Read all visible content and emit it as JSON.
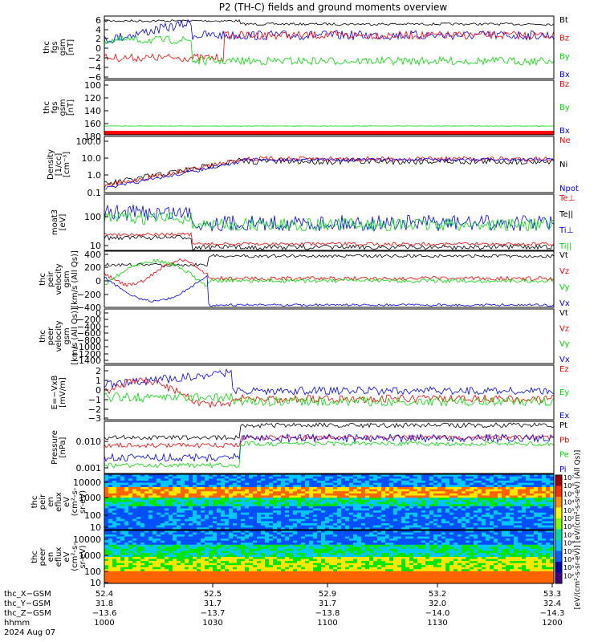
{
  "title": "P2 (TH-C) fields and ground moments overview",
  "colors": {
    "black": "#000000",
    "red": "#ff0000",
    "green": "#00dd00",
    "blue": "#0000ff"
  },
  "chart_data": [
    {
      "type": "line",
      "id": "fgs",
      "ylabel_lines": [
        "thc",
        "fgs",
        "gsm",
        "[nT]"
      ],
      "yticks": [
        "6",
        "4",
        "2",
        "0",
        "−2",
        "−4",
        "−6"
      ],
      "ylim": [
        -7,
        7
      ],
      "legend": [
        {
          "label": "Bt",
          "color": "black"
        },
        {
          "label": "Bz",
          "color": "red"
        },
        {
          "label": "By",
          "color": "green"
        },
        {
          "label": "Bx",
          "color": "blue"
        }
      ]
    },
    {
      "type": "line",
      "id": "fgs_mag",
      "ylabel_lines": [
        "thc",
        "fgs",
        "gsm",
        "[nT]"
      ],
      "yticks": [
        "100",
        "120",
        "140",
        "160",
        "180"
      ],
      "ylim": [
        90,
        190
      ],
      "legend": [
        {
          "label": "Bz",
          "color": "red"
        },
        {
          "label": "By",
          "color": "green"
        },
        {
          "label": "Bx",
          "color": "blue"
        }
      ]
    },
    {
      "type": "line",
      "id": "density",
      "ylabel_lines": [
        "Density",
        "[1/cc]",
        "[cm⁻³]"
      ],
      "yticks": [
        "100.0",
        "10.0",
        "1.0",
        "0.1"
      ],
      "scale": "log",
      "legend": [
        {
          "label": "Ne",
          "color": "red"
        },
        {
          "label": "Ni",
          "color": "black"
        },
        {
          "label": "Npot",
          "color": "blue"
        }
      ]
    },
    {
      "type": "line",
      "id": "temp",
      "ylabel_lines": [
        "moat3",
        "[eV]"
      ],
      "yticks": [
        "100",
        "10"
      ],
      "scale": "log",
      "legend": [
        {
          "label": "Te⊥",
          "color": "red"
        },
        {
          "label": "Te||",
          "color": "black"
        },
        {
          "label": "Ti⊥",
          "color": "blue"
        },
        {
          "label": "Ti||",
          "color": "green"
        }
      ]
    },
    {
      "type": "line",
      "id": "velocity",
      "ylabel_lines": [
        "thc",
        "peir",
        "velocity",
        "gsm",
        "[km/s (All Qs)]"
      ],
      "yticks": [
        "400",
        "200",
        "0",
        "−200",
        "−400"
      ],
      "ylim": [
        -450,
        450
      ],
      "legend": [
        {
          "label": "Vt",
          "color": "black"
        },
        {
          "label": "Vz",
          "color": "red"
        },
        {
          "label": "Vy",
          "color": "green"
        },
        {
          "label": "Vx",
          "color": "blue"
        }
      ]
    },
    {
      "type": "line",
      "id": "velocity2",
      "ylabel_lines": [
        "thc",
        "peer",
        "velocity",
        "gsm",
        "[km/s (All Qs)]"
      ],
      "yticks": [
        "0",
        "−200",
        "−400",
        "−600",
        "−800",
        "−1000",
        "−1200",
        "−1400"
      ],
      "ylim": [
        -1450,
        50
      ],
      "legend": [
        {
          "label": "Vt",
          "color": "black"
        },
        {
          "label": "Vz",
          "color": "red"
        },
        {
          "label": "Vy",
          "color": "green"
        },
        {
          "label": "Vx",
          "color": "blue"
        }
      ]
    },
    {
      "type": "line",
      "id": "efield",
      "ylabel_lines": [
        "E=−VxB",
        "[mV/m]"
      ],
      "yticks": [
        "2",
        "1",
        "0",
        "−1",
        "−2",
        "−3"
      ],
      "ylim": [
        -3.3,
        2.6
      ],
      "legend": [
        {
          "label": "Ez",
          "color": "red"
        },
        {
          "label": "Ey",
          "color": "green"
        },
        {
          "label": "Ex",
          "color": "blue"
        }
      ]
    },
    {
      "type": "line",
      "id": "pressure",
      "ylabel_lines": [
        "Pressure",
        "[nPa]"
      ],
      "yticks": [
        "0.010",
        "0.001"
      ],
      "scale": "log",
      "legend": [
        {
          "label": "Pt",
          "color": "black"
        },
        {
          "label": "Pb",
          "color": "red"
        },
        {
          "label": "Pe",
          "color": "green"
        },
        {
          "label": "Pi",
          "color": "blue"
        }
      ]
    },
    {
      "type": "heatmap",
      "id": "peir_spec",
      "ylabel_lines": [
        "thc",
        "peir",
        "en",
        "eflux",
        "eV",
        "(cm²-s-",
        "sr-eV)"
      ],
      "yticks": [
        "10000",
        "1000",
        "100",
        "10"
      ],
      "scale": "log"
    },
    {
      "type": "heatmap",
      "id": "peer_spec",
      "ylabel_lines": [
        "thc",
        "peer",
        "en",
        "eflux",
        "eV",
        "(cm²-s-",
        "sr-eV)"
      ],
      "yticks": [
        "10000",
        "1000",
        "100",
        "10"
      ],
      "scale": "log"
    }
  ],
  "colorbar": {
    "labels": [
      "10⁷",
      "10⁶",
      "10⁵",
      "10⁴",
      "10³",
      "10²",
      "10⁸",
      "10⁷",
      "10⁶",
      "10⁵",
      "10⁴",
      "10³",
      "10²"
    ],
    "title": "[eV/(cm²-s-sr-eV)] [eV/(cm²-s-sr-eV) (All Qs)]"
  },
  "xaxis": {
    "row_labels": [
      "thc_X−GSM",
      "thc_Y−GSM",
      "thc_Z−GSM",
      "hhmm",
      "2024 Aug 07"
    ],
    "ticks": [
      {
        "x": "52.4",
        "y": "31.8",
        "z": "−13.6",
        "t": "1000"
      },
      {
        "x": "52.5",
        "y": "31.7",
        "z": "−13.7",
        "t": "1030"
      },
      {
        "x": "52.9",
        "y": "31.7",
        "z": "−13.8",
        "t": "1100"
      },
      {
        "x": "53.2",
        "y": "32.0",
        "z": "−14.0",
        "t": "1130"
      },
      {
        "x": "53.3",
        "y": "32.4",
        "z": "−14.3",
        "t": "1200"
      }
    ]
  }
}
